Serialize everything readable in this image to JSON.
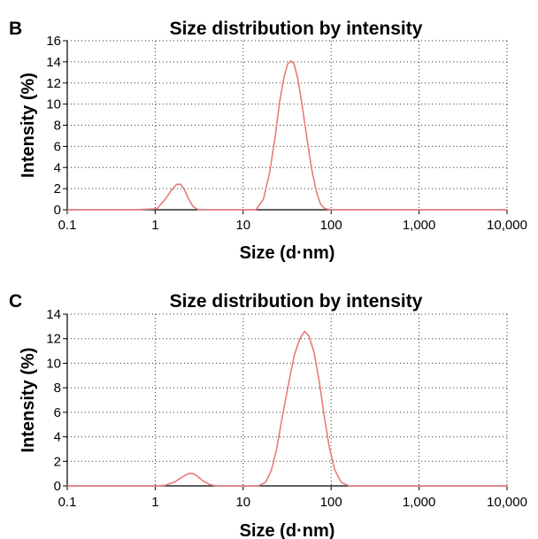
{
  "chart_data": [
    {
      "panel_label": "B",
      "type": "line",
      "title": "Size distribution by intensity",
      "xlabel": "Size (d·nm)",
      "ylabel": "Intensity (%)",
      "x_scale": "log",
      "xlim": [
        0.1,
        10000
      ],
      "ylim": [
        0,
        16
      ],
      "xticks": [
        0.1,
        1,
        10,
        100,
        1000,
        10000
      ],
      "xtick_labels": [
        "0.1",
        "1",
        "10",
        "100",
        "1,000",
        "10,000"
      ],
      "yticks": [
        0,
        2,
        4,
        6,
        8,
        10,
        12,
        14,
        16
      ],
      "ytick_labels": [
        "0",
        "2",
        "4",
        "6",
        "8",
        "10",
        "12",
        "14",
        "16"
      ],
      "grid": true,
      "line_color": "#e87b7b",
      "series": [
        {
          "x": [
            0.1,
            0.6,
            1.05,
            1.3,
            1.55,
            1.75,
            1.95,
            2.15,
            2.4,
            2.7,
            3.1,
            4,
            8,
            14,
            17,
            20,
            23,
            26,
            29,
            32,
            35,
            38,
            42,
            47,
            53,
            60,
            68,
            76,
            85,
            100,
            1000,
            10000
          ],
          "y": [
            0,
            0,
            0.1,
            1.0,
            1.9,
            2.4,
            2.4,
            1.9,
            1.0,
            0.3,
            0,
            0,
            0,
            0,
            1.0,
            3.5,
            6.8,
            10.2,
            12.5,
            13.8,
            14.1,
            13.8,
            12.3,
            9.8,
            6.8,
            3.9,
            1.7,
            0.5,
            0.1,
            0,
            0,
            0
          ]
        }
      ]
    },
    {
      "panel_label": "C",
      "type": "line",
      "title": "Size distribution by intensity",
      "xlabel": "Size (d·nm)",
      "ylabel": "Intensity (%)",
      "x_scale": "log",
      "xlim": [
        0.1,
        10000
      ],
      "ylim": [
        0,
        14
      ],
      "xticks": [
        0.1,
        1,
        10,
        100,
        1000,
        10000
      ],
      "xtick_labels": [
        "0.1",
        "1",
        "10",
        "100",
        "1,000",
        "10,000"
      ],
      "yticks": [
        0,
        2,
        4,
        6,
        8,
        10,
        12,
        14
      ],
      "ytick_labels": [
        "0",
        "2",
        "4",
        "6",
        "8",
        "10",
        "12",
        "14"
      ],
      "grid": true,
      "line_color": "#e87b7b",
      "series": [
        {
          "x": [
            0.1,
            1,
            1.3,
            1.65,
            2.0,
            2.4,
            2.7,
            3.0,
            3.5,
            4.2,
            5,
            8,
            15,
            18,
            21,
            24,
            28,
            33,
            38,
            44,
            50,
            56,
            64,
            73,
            83,
            95,
            110,
            130,
            160,
            1000,
            10000
          ],
          "y": [
            0,
            0,
            0.05,
            0.3,
            0.7,
            1.0,
            1.0,
            0.8,
            0.4,
            0.1,
            0,
            0,
            0,
            0.3,
            1.3,
            3.0,
            5.7,
            8.4,
            10.6,
            12.0,
            12.6,
            12.2,
            10.9,
            8.6,
            5.8,
            3.2,
            1.3,
            0.3,
            0,
            0,
            0
          ]
        }
      ]
    }
  ]
}
